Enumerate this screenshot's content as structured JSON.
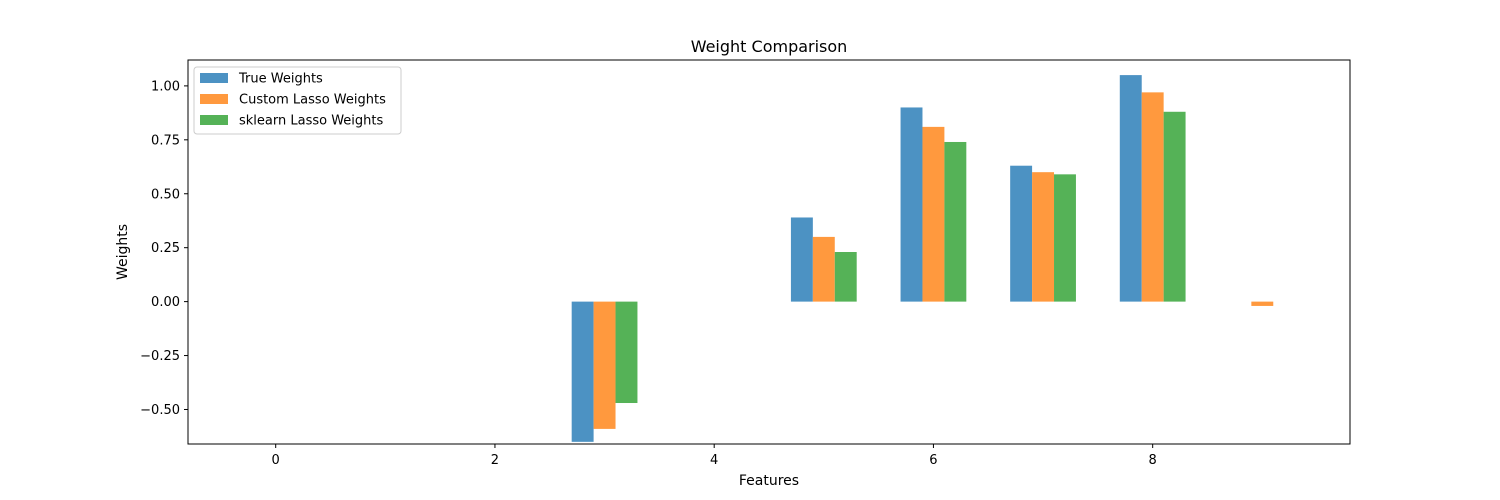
{
  "chart_data": {
    "type": "bar",
    "title": "Weight Comparison",
    "xlabel": "Features",
    "ylabel": "Weights",
    "x": [
      0,
      1,
      2,
      3,
      4,
      5,
      6,
      7,
      8,
      9
    ],
    "xlim": [
      -0.8,
      9.8
    ],
    "ylim": [
      -0.66,
      1.12
    ],
    "xticks": [
      0,
      2,
      4,
      6,
      8
    ],
    "xtick_labels": [
      "0",
      "2",
      "4",
      "6",
      "8"
    ],
    "yticks": [
      -0.5,
      -0.25,
      0.0,
      0.25,
      0.5,
      0.75,
      1.0
    ],
    "ytick_labels": [
      "−0.50",
      "−0.25",
      "0.00",
      "0.25",
      "0.50",
      "0.75",
      "1.00"
    ],
    "grid": false,
    "legend_position": "top-left",
    "bar_width": 0.2,
    "series": [
      {
        "name": "True Weights",
        "color": "#4c92c3",
        "values": [
          0,
          0,
          0,
          -0.65,
          0,
          0.39,
          0.9,
          0.63,
          1.05,
          0
        ]
      },
      {
        "name": "Custom Lasso Weights",
        "color": "#ff993e",
        "values": [
          0,
          0,
          0,
          -0.59,
          0,
          0.3,
          0.81,
          0.6,
          0.97,
          -0.02
        ]
      },
      {
        "name": "sklearn Lasso Weights",
        "color": "#55b257",
        "values": [
          0,
          0,
          0,
          -0.47,
          0,
          0.23,
          0.74,
          0.59,
          0.88,
          0
        ]
      }
    ]
  }
}
